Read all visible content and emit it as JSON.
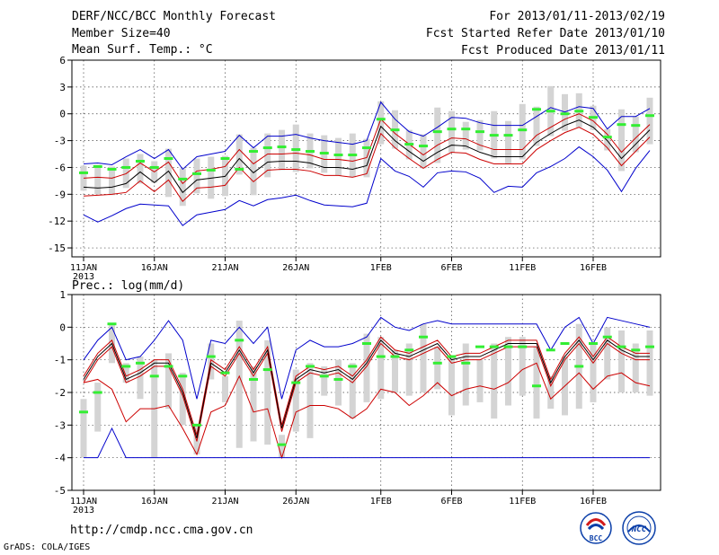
{
  "header": {
    "title": "DERF/NCC/BCC Monthly Forecast",
    "member_size": "Member Size=40",
    "period": "For 2013/01/11-2013/02/19",
    "started": "Fcst Started Refer Date 2013/01/10",
    "produced": "Fcst Produced Date 2013/01/11"
  },
  "footer": {
    "url": "http://cmdp.ncc.cma.gov.cn",
    "credit": "GrADS: COLA/IGES"
  },
  "logos": {
    "left": "BCC",
    "right": "NCC"
  },
  "colors": {
    "box": "#d4d4d4",
    "member": "#33ee33",
    "mean": "#000000",
    "inner": "#cc0000",
    "outer": "#0000cc",
    "grid": "#444444"
  },
  "chart_data": [
    {
      "type": "line",
      "title": "Mean Surf. Temp.: °C",
      "ylim": [
        -16,
        6
      ],
      "yticks": [
        6,
        3,
        0,
        -3,
        -6,
        -9,
        -12,
        -15
      ],
      "xticks": [
        {
          "day": 0,
          "label": "11JAN",
          "sub": "2013"
        },
        {
          "day": 5,
          "label": "16JAN"
        },
        {
          "day": 10,
          "label": "21JAN"
        },
        {
          "day": 15,
          "label": "26JAN"
        },
        {
          "day": 21,
          "label": "1FEB"
        },
        {
          "day": 26,
          "label": "6FEB"
        },
        {
          "day": 31,
          "label": "11FEB"
        },
        {
          "day": 36,
          "label": "16FEB"
        }
      ],
      "series": [
        {
          "name": "ensemble mean",
          "values": [
            -8.2,
            -8.3,
            -8.2,
            -7.8,
            -6.5,
            -7.7,
            -6.4,
            -8.8,
            -7.4,
            -7.2,
            -7.0,
            -5.0,
            -6.6,
            -5.4,
            -5.3,
            -5.3,
            -5.5,
            -6.0,
            -6.0,
            -6.2,
            -5.8,
            -1.4,
            -3.0,
            -4.2,
            -5.3,
            -4.3,
            -3.5,
            -3.6,
            -4.3,
            -4.8,
            -4.8,
            -4.8,
            -3.2,
            -2.2,
            -1.3,
            -0.7,
            -1.5,
            -3.0,
            -5.0,
            -3.4,
            -1.8
          ]
        },
        {
          "name": "upper inner",
          "values": [
            -7.2,
            -7.1,
            -7.2,
            -6.7,
            -5.5,
            -6.5,
            -5.4,
            -7.8,
            -6.4,
            -6.2,
            -5.9,
            -4.0,
            -5.6,
            -4.5,
            -4.5,
            -4.4,
            -4.6,
            -5.1,
            -5.1,
            -5.3,
            -4.9,
            -0.6,
            -2.2,
            -3.4,
            -4.6,
            -3.5,
            -2.7,
            -2.8,
            -3.5,
            -4.0,
            -4.0,
            -4.0,
            -2.4,
            -1.5,
            -0.6,
            0.0,
            -0.8,
            -2.3,
            -4.3,
            -2.7,
            -1.2
          ]
        },
        {
          "name": "lower inner",
          "values": [
            -9.2,
            -9.1,
            -9.0,
            -8.8,
            -7.5,
            -8.7,
            -7.4,
            -9.8,
            -8.3,
            -8.2,
            -8.0,
            -6.0,
            -7.6,
            -6.3,
            -6.2,
            -6.2,
            -6.4,
            -6.9,
            -6.9,
            -7.1,
            -6.7,
            -2.2,
            -3.8,
            -5.0,
            -6.1,
            -5.1,
            -4.3,
            -4.4,
            -5.1,
            -5.6,
            -5.6,
            -5.6,
            -4.0,
            -3.0,
            -2.1,
            -1.5,
            -2.3,
            -3.8,
            -5.8,
            -4.2,
            -2.6
          ]
        },
        {
          "name": "upper outer",
          "values": [
            -5.6,
            -5.5,
            -5.7,
            -4.8,
            -4.0,
            -5.0,
            -4.0,
            -6.2,
            -4.8,
            -4.5,
            -4.2,
            -2.4,
            -3.8,
            -2.5,
            -2.5,
            -2.3,
            -2.7,
            -3.0,
            -3.2,
            -3.4,
            -3.0,
            1.3,
            -0.6,
            -2.0,
            -2.5,
            -1.5,
            -0.4,
            -0.5,
            -1.0,
            -1.3,
            -1.3,
            -1.3,
            -0.3,
            0.7,
            0.2,
            0.8,
            0.6,
            -1.7,
            -0.3,
            -0.3,
            0.6
          ]
        },
        {
          "name": "lower outer",
          "values": [
            -11.3,
            -12.1,
            -11.4,
            -10.6,
            -10.1,
            -10.2,
            -10.3,
            -12.5,
            -11.3,
            -11.0,
            -10.7,
            -9.7,
            -10.3,
            -9.6,
            -9.4,
            -9.1,
            -9.7,
            -10.2,
            -10.3,
            -10.4,
            -10.0,
            -5.0,
            -6.4,
            -7.0,
            -8.2,
            -6.6,
            -6.4,
            -6.5,
            -7.2,
            -8.8,
            -8.1,
            -8.2,
            -6.6,
            -5.9,
            -5.0,
            -3.7,
            -4.8,
            -6.3,
            -8.7,
            -6.1,
            -4.1
          ]
        },
        {
          "name": "box top",
          "values": [
            -5.8,
            -5.7,
            -5.9,
            -5.0,
            -4.5,
            -5.3,
            -3.9,
            -6.1,
            -5.0,
            -4.8,
            -4.7,
            -2.3,
            -3.8,
            -2.2,
            -1.8,
            -1.2,
            -2.2,
            -2.4,
            -2.7,
            -2.2,
            -2.8,
            1.4,
            0.4,
            -1.8,
            -2.3,
            0.7,
            0.3,
            -0.9,
            -0.7,
            0.3,
            -0.8,
            1.1,
            0.8,
            3.1,
            2.2,
            2.3,
            0.9,
            -1.7,
            0.5,
            -0.3,
            1.8
          ]
        },
        {
          "name": "box bottom",
          "values": [
            -8.6,
            -9.0,
            -9.1,
            -8.3,
            -7.8,
            -7.7,
            -9.3,
            -10.3,
            -8.9,
            -9.5,
            -9.2,
            -6.8,
            -9.1,
            -7.1,
            -6.3,
            -6.5,
            -6.1,
            -6.6,
            -6.9,
            -7.1,
            -7.1,
            -3.4,
            -3.9,
            -5.1,
            -6.1,
            -5.5,
            -4.3,
            -4.0,
            -4.1,
            -5.0,
            -5.6,
            -5.1,
            -3.6,
            -2.5,
            -1.9,
            -1.5,
            -1.8,
            -4.1,
            -6.4,
            -4.3,
            -3.4
          ]
        },
        {
          "name": "member",
          "values": [
            -6.6,
            -5.9,
            -6.2,
            -6.0,
            -5.3,
            -6.0,
            -5.0,
            -7.3,
            -6.7,
            -6.3,
            -5.0,
            -6.2,
            -4.2,
            -3.8,
            -3.7,
            -4.0,
            -4.2,
            -4.4,
            -4.6,
            -4.6,
            -3.8,
            -0.6,
            -1.8,
            -3.4,
            -3.6,
            -2.0,
            -1.7,
            -1.7,
            -2.0,
            -2.4,
            -2.4,
            -1.8,
            0.5,
            0.3,
            0.0,
            0.3,
            -0.4,
            -2.6,
            -1.2,
            -1.3,
            -0.2
          ]
        }
      ]
    },
    {
      "type": "line",
      "title": "Prec.: log(mm/d)",
      "ylim": [
        -5,
        1
      ],
      "yticks": [
        1,
        0,
        -1,
        -2,
        -3,
        -4,
        -5
      ],
      "xticks": [
        {
          "day": 0,
          "label": "11JAN",
          "sub": "2013"
        },
        {
          "day": 5,
          "label": "16JAN"
        },
        {
          "day": 10,
          "label": "21JAN"
        },
        {
          "day": 15,
          "label": "26JAN"
        },
        {
          "day": 21,
          "label": "1FEB"
        },
        {
          "day": 26,
          "label": "6FEB"
        },
        {
          "day": 31,
          "label": "11FEB"
        },
        {
          "day": 36,
          "label": "16FEB"
        }
      ],
      "series": [
        {
          "name": "ensemble mean",
          "values": [
            -1.6,
            -0.9,
            -0.5,
            -1.6,
            -1.4,
            -1.1,
            -1.1,
            -2.0,
            -3.4,
            -1.1,
            -1.4,
            -0.7,
            -1.4,
            -0.7,
            -3.1,
            -1.6,
            -1.3,
            -1.4,
            -1.3,
            -1.6,
            -1.1,
            -0.4,
            -0.8,
            -0.9,
            -0.7,
            -0.5,
            -1.0,
            -0.9,
            -0.9,
            -0.7,
            -0.5,
            -0.5,
            -0.5,
            -1.7,
            -0.9,
            -0.4,
            -1.0,
            -0.4,
            -0.7,
            -0.9,
            -0.9
          ]
        },
        {
          "name": "upper inner",
          "values": [
            -1.5,
            -0.8,
            -0.4,
            -1.5,
            -1.3,
            -1.0,
            -1.0,
            -1.9,
            -3.3,
            -1.0,
            -1.3,
            -0.6,
            -1.3,
            -0.6,
            -3.0,
            -1.5,
            -1.2,
            -1.3,
            -1.2,
            -1.5,
            -1.0,
            -0.3,
            -0.7,
            -0.8,
            -0.6,
            -0.4,
            -0.9,
            -0.8,
            -0.8,
            -0.6,
            -0.4,
            -0.4,
            -0.4,
            -1.6,
            -0.8,
            -0.3,
            -0.9,
            -0.3,
            -0.6,
            -0.8,
            -0.8
          ]
        },
        {
          "name": "lower inner",
          "values": [
            -1.7,
            -1.0,
            -0.6,
            -1.7,
            -1.5,
            -1.2,
            -1.2,
            -2.1,
            -3.5,
            -1.2,
            -1.5,
            -0.8,
            -1.5,
            -0.8,
            -3.2,
            -1.7,
            -1.4,
            -1.5,
            -1.4,
            -1.7,
            -1.2,
            -0.5,
            -0.9,
            -1.0,
            -0.8,
            -0.6,
            -1.1,
            -1.0,
            -1.0,
            -0.8,
            -0.6,
            -0.6,
            -0.6,
            -1.8,
            -1.0,
            -0.5,
            -1.1,
            -0.5,
            -0.8,
            -1.0,
            -1.0
          ]
        },
        {
          "name": "upper outer",
          "values": [
            -1.0,
            -0.4,
            0.0,
            -1.0,
            -0.9,
            -0.4,
            0.2,
            -0.4,
            -2.2,
            -0.4,
            -0.5,
            0.0,
            -0.5,
            0.0,
            -2.2,
            -0.7,
            -0.4,
            -0.6,
            -0.6,
            -0.5,
            -0.3,
            0.3,
            0.0,
            -0.1,
            0.1,
            0.2,
            0.1,
            0.1,
            0.1,
            0.1,
            0.1,
            0.1,
            0.1,
            -0.7,
            0.0,
            0.3,
            -0.5,
            0.3,
            0.2,
            0.1,
            0.0
          ]
        },
        {
          "name": "lower outer",
          "values": [
            -4.0,
            -4.0,
            -3.1,
            -4.0,
            -4.0,
            -4.0,
            -4.0,
            -4.0,
            -4.0,
            -4.0,
            -4.0,
            -4.0,
            -4.0,
            -4.0,
            -4.0,
            -4.0,
            -4.0,
            -4.0,
            -4.0,
            -4.0,
            -4.0,
            -4.0,
            -4.0,
            -4.0,
            -4.0,
            -4.0,
            -4.0,
            -4.0,
            -4.0,
            -4.0,
            -4.0,
            -4.0,
            -4.0,
            -4.0,
            -4.0,
            -4.0,
            -4.0,
            -4.0,
            -4.0,
            -4.0,
            -4.0
          ]
        },
        {
          "name": "lower red",
          "values": [
            -1.7,
            -1.6,
            -1.9,
            -2.9,
            -2.5,
            -2.5,
            -2.4,
            -3.1,
            -3.9,
            -2.6,
            -2.4,
            -1.5,
            -2.6,
            -2.5,
            -4.0,
            -2.6,
            -2.4,
            -2.4,
            -2.5,
            -2.8,
            -2.5,
            -1.9,
            -2.0,
            -2.4,
            -2.1,
            -1.7,
            -2.1,
            -1.9,
            -1.8,
            -1.9,
            -1.7,
            -1.3,
            -1.1,
            -2.2,
            -1.8,
            -1.4,
            -1.9,
            -1.5,
            -1.4,
            -1.7,
            -1.8
          ]
        },
        {
          "name": "box top",
          "values": [
            -2.2,
            -1.7,
            0.1,
            -1.1,
            -0.9,
            -1.0,
            -0.8,
            -1.4,
            -3.0,
            -0.5,
            -1.5,
            0.2,
            -1.2,
            -0.4,
            -3.3,
            -1.3,
            -1.1,
            -1.2,
            -1.0,
            -1.1,
            -0.2,
            -0.3,
            -0.7,
            -0.5,
            0.1,
            -0.6,
            -0.9,
            -0.5,
            -1.0,
            -0.5,
            -0.3,
            -0.3,
            -0.6,
            -1.5,
            -0.9,
            0.1,
            -0.5,
            0.0,
            -0.1,
            -0.5,
            -0.1
          ]
        },
        {
          "name": "box bottom",
          "values": [
            -4.0,
            -3.2,
            -1.1,
            -1.7,
            -2.2,
            -4.0,
            -2.5,
            -3.0,
            -3.9,
            -1.6,
            -2.3,
            -3.7,
            -3.5,
            -3.6,
            -4.0,
            -3.2,
            -3.4,
            -2.1,
            -2.4,
            -2.8,
            -2.3,
            -2.2,
            -2.0,
            -2.1,
            -2.0,
            -1.9,
            -2.7,
            -2.4,
            -2.3,
            -2.8,
            -2.4,
            -2.1,
            -2.8,
            -2.5,
            -2.7,
            -2.5,
            -2.3,
            -1.6,
            -2.0,
            -2.0,
            -2.1
          ]
        },
        {
          "name": "member",
          "values": [
            -2.6,
            -2.0,
            0.1,
            -1.2,
            -1.1,
            -1.5,
            -1.2,
            -1.5,
            -3.0,
            -0.9,
            -1.4,
            -0.4,
            -1.6,
            -1.3,
            -3.6,
            -1.7,
            -1.2,
            -1.5,
            -1.6,
            -1.2,
            -0.5,
            -0.9,
            -0.9,
            -0.7,
            -0.3,
            -1.1,
            -0.9,
            -1.1,
            -0.6,
            -0.6,
            -0.6,
            -0.6,
            -1.8,
            -0.7,
            -0.5,
            -1.2,
            -0.5,
            -0.3,
            -0.6,
            -0.7,
            -0.6
          ]
        }
      ]
    }
  ]
}
